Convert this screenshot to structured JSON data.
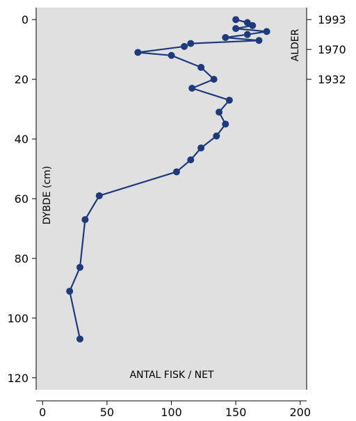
{
  "chart_data": {
    "type": "line",
    "title": "",
    "xlabel": "ANTAL FISK / NET",
    "ylabel": "DYBDE (cm)",
    "right_axis_label": "ALDER",
    "xlim": [
      -5,
      205
    ],
    "ylim": [
      124,
      -4
    ],
    "y_inverted": true,
    "grid": false,
    "x_ticks": [
      "0",
      "50",
      "100",
      "150",
      "200"
    ],
    "x_tick_values": [
      0,
      50,
      100,
      150,
      200
    ],
    "y_ticks": [
      "0",
      "20",
      "40",
      "60",
      "80",
      "100",
      "120"
    ],
    "y_tick_values": [
      0,
      20,
      40,
      60,
      80,
      100,
      120
    ],
    "age_markers": [
      {
        "label": "1993",
        "depth": 0
      },
      {
        "label": "1970",
        "depth": 10
      },
      {
        "label": "1932",
        "depth": 20
      }
    ],
    "series": [
      {
        "color": "#1c3a7c",
        "points": [
          {
            "x": 150,
            "y": 0
          },
          {
            "x": 159,
            "y": 1
          },
          {
            "x": 163,
            "y": 2
          },
          {
            "x": 150,
            "y": 3
          },
          {
            "x": 174,
            "y": 4
          },
          {
            "x": 159,
            "y": 5
          },
          {
            "x": 142,
            "y": 6
          },
          {
            "x": 168,
            "y": 7
          },
          {
            "x": 115,
            "y": 8
          },
          {
            "x": 110,
            "y": 9
          },
          {
            "x": 74,
            "y": 11
          },
          {
            "x": 100,
            "y": 12
          },
          {
            "x": 123,
            "y": 16
          },
          {
            "x": 133,
            "y": 20
          },
          {
            "x": 116,
            "y": 23
          },
          {
            "x": 145,
            "y": 27
          },
          {
            "x": 137,
            "y": 31
          },
          {
            "x": 142,
            "y": 35
          },
          {
            "x": 135,
            "y": 39
          },
          {
            "x": 123,
            "y": 43
          },
          {
            "x": 115,
            "y": 47
          },
          {
            "x": 104,
            "y": 51
          },
          {
            "x": 44,
            "y": 59
          },
          {
            "x": 33,
            "y": 67
          },
          {
            "x": 29,
            "y": 83
          },
          {
            "x": 21,
            "y": 91
          },
          {
            "x": 29,
            "y": 107
          }
        ]
      }
    ]
  }
}
